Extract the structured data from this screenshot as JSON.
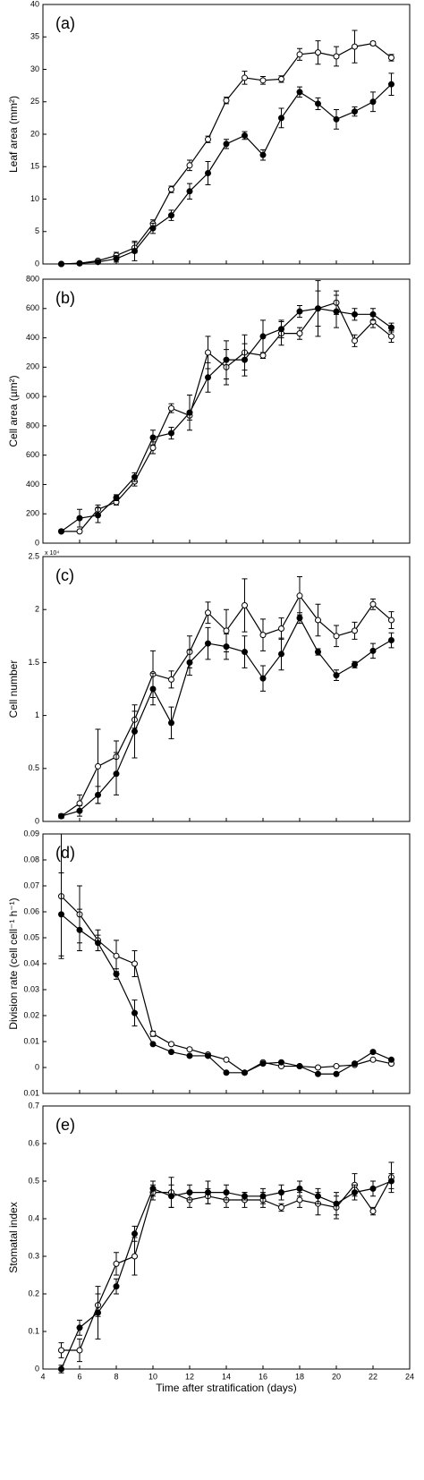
{
  "chart_data": [
    {
      "type": "line",
      "title": "(a)",
      "y_label": "Leaf area (mm²)",
      "x": [
        5,
        6,
        7,
        8,
        9,
        10,
        11,
        12,
        13,
        14,
        15,
        16,
        17,
        18,
        19,
        20,
        21,
        22,
        23
      ],
      "xlim": [
        4,
        24
      ],
      "xticks": [
        4,
        6,
        8,
        10,
        12,
        14,
        16,
        18,
        20,
        22,
        24
      ],
      "xtick_labels": false,
      "ylim": [
        0,
        40
      ],
      "yticks": [
        0,
        5,
        10,
        15,
        20,
        25,
        30,
        35,
        40
      ],
      "series": [
        {
          "marker": "open",
          "color": "#000",
          "values": [
            0,
            0.1,
            0.5,
            1.3,
            2.5,
            6.2,
            11.5,
            15.2,
            19.2,
            25.2,
            28.7,
            28.3,
            28.5,
            32.3,
            32.6,
            32.0,
            33.5,
            34.0,
            31.8
          ],
          "errors": [
            0.1,
            0.1,
            0.2,
            0.5,
            0.8,
            0.6,
            0.5,
            0.8,
            0.5,
            0.5,
            1,
            0.6,
            0.5,
            0.9,
            1.8,
            1.5,
            2.5,
            0.3,
            0.5
          ]
        },
        {
          "marker": "filled",
          "color": "#000",
          "values": [
            0,
            0.1,
            0.3,
            0.8,
            2.0,
            5.5,
            7.5,
            11.2,
            14,
            18.5,
            19.8,
            16.8,
            22.5,
            26.5,
            24.7,
            22.3,
            23.5,
            25,
            27.7
          ],
          "errors": [
            0.1,
            0.1,
            0.2,
            0.5,
            1.5,
            0.8,
            0.8,
            1.2,
            1.8,
            0.7,
            0.6,
            0.8,
            1.5,
            0.8,
            0.9,
            1.5,
            0.7,
            1.5,
            1.7
          ]
        }
      ]
    },
    {
      "type": "line",
      "title": "(b)",
      "y_label": "Cell area (µm²)",
      "x": [
        5,
        6,
        7,
        8,
        9,
        10,
        11,
        12,
        13,
        14,
        15,
        16,
        17,
        18,
        19,
        20,
        21,
        22,
        23
      ],
      "xlim": [
        4,
        24
      ],
      "xticks": [
        4,
        6,
        8,
        10,
        12,
        14,
        16,
        18,
        20,
        22,
        24
      ],
      "xtick_labels": false,
      "ylim": [
        0,
        1800
      ],
      "yticks": [
        0,
        200,
        400,
        600,
        800,
        {
          "value": 1000,
          "label": "000"
        },
        {
          "value": 1200,
          "label": "200"
        },
        {
          "value": 1400,
          "label": "400"
        },
        {
          "value": 1600,
          "label": "600"
        },
        {
          "value": 1800,
          "label": "800"
        }
      ],
      "series": [
        {
          "marker": "open",
          "color": "#000",
          "values": [
            80,
            80,
            230,
            280,
            420,
            650,
            920,
            870,
            1300,
            1200,
            1300,
            1280,
            1430,
            1430,
            1600,
            1640,
            1380,
            1510,
            1410
          ],
          "errors": [
            10,
            10,
            30,
            20,
            30,
            40,
            30,
            30,
            110,
            120,
            120,
            20,
            80,
            40,
            190,
            80,
            40,
            40,
            40
          ]
        },
        {
          "marker": "filled",
          "color": "#000",
          "values": [
            80,
            170,
            190,
            310,
            450,
            720,
            750,
            890,
            1130,
            1250,
            1250,
            1410,
            1460,
            1580,
            1600,
            1580,
            1560,
            1560,
            1470
          ],
          "errors": [
            10,
            60,
            50,
            20,
            30,
            50,
            40,
            120,
            100,
            130,
            110,
            110,
            60,
            40,
            120,
            110,
            40,
            40,
            30
          ]
        }
      ]
    },
    {
      "type": "line",
      "title": "(c)",
      "y_label": "Cell number",
      "y_multiplier": "x 10⁴",
      "x": [
        5,
        6,
        7,
        8,
        9,
        10,
        11,
        12,
        13,
        14,
        15,
        16,
        17,
        18,
        19,
        20,
        21,
        22,
        23
      ],
      "xlim": [
        4,
        24
      ],
      "xticks": [
        4,
        6,
        8,
        10,
        12,
        14,
        16,
        18,
        20,
        22,
        24
      ],
      "xtick_labels": false,
      "ylim": [
        0,
        25000
      ],
      "yticks": [
        {
          "value": 0,
          "label": "0"
        },
        {
          "value": 5000,
          "label": "0.5"
        },
        {
          "value": 10000,
          "label": "1"
        },
        {
          "value": 15000,
          "label": "1.5"
        },
        {
          "value": 20000,
          "label": "2"
        },
        {
          "value": 25000,
          "label": "2.5"
        }
      ],
      "series": [
        {
          "marker": "open",
          "color": "#000",
          "values": [
            500,
            1700,
            5200,
            6100,
            9600,
            13900,
            13400,
            16000,
            19700,
            18000,
            20400,
            17600,
            18200,
            21300,
            19000,
            17500,
            18000,
            20500,
            19000
          ],
          "errors": [
            200,
            800,
            3500,
            1500,
            800,
            2200,
            800,
            1500,
            1000,
            2000,
            2500,
            1500,
            1000,
            1800,
            1500,
            1000,
            800,
            500,
            800
          ]
        },
        {
          "marker": "filled",
          "color": "#000",
          "values": [
            500,
            1000,
            2500,
            4500,
            8500,
            12500,
            9300,
            15000,
            16800,
            16500,
            16000,
            13500,
            15800,
            19200,
            16000,
            13800,
            14800,
            16100,
            17100
          ],
          "errors": [
            200,
            500,
            800,
            2000,
            2500,
            1500,
            1500,
            1200,
            1500,
            1200,
            1500,
            1200,
            1500,
            500,
            300,
            500,
            300,
            700,
            700
          ]
        }
      ]
    },
    {
      "type": "line",
      "title": "(d)",
      "y_label": "Division rate (cell cell⁻¹ h⁻¹)",
      "x": [
        5,
        6,
        7,
        8,
        9,
        10,
        11,
        12,
        13,
        14,
        15,
        16,
        17,
        18,
        19,
        20,
        21,
        22,
        23
      ],
      "xlim": [
        4,
        24
      ],
      "xticks": [
        4,
        6,
        8,
        10,
        12,
        14,
        16,
        18,
        20,
        22,
        24
      ],
      "xtick_labels": false,
      "ylim": [
        -0.01,
        0.09
      ],
      "yticks": [
        {
          "value": -0.01,
          "label": "0.01"
        },
        0,
        0.01,
        0.02,
        0.03,
        0.04,
        0.05,
        0.06,
        0.07,
        0.08,
        0.09
      ],
      "series": [
        {
          "marker": "open",
          "color": "#000",
          "values": [
            0.066,
            0.059,
            0.049,
            0.043,
            0.04,
            0.013,
            0.009,
            0.007,
            0.005,
            0.003,
            -0.002,
            0.002,
            0.0005,
            0.0005,
            0,
            0.0005,
            0.001,
            0.003,
            0.0015
          ],
          "errors": [
            0.024,
            0.011,
            0.004,
            0.006,
            0.005,
            0.001,
            0.0005,
            0.0005,
            0.0005,
            0.0005,
            0.0005,
            0.0005,
            0.0005,
            0.0005,
            0.0005,
            0.0005,
            0.0005,
            0.0005,
            0.0005
          ]
        },
        {
          "marker": "filled",
          "color": "#000",
          "values": [
            0.059,
            0.053,
            0.048,
            0.036,
            0.021,
            0.009,
            0.006,
            0.0045,
            0.0045,
            -0.002,
            -0.002,
            0.0015,
            0.002,
            0.0005,
            -0.0025,
            -0.0025,
            0.0015,
            0.006,
            0.003
          ],
          "errors": [
            0.016,
            0.008,
            0.003,
            0.002,
            0.005,
            0.0005,
            0.0005,
            0.0005,
            0.0005,
            0.0005,
            0.0005,
            0.0005,
            0.0005,
            0.0005,
            0.0005,
            0.0005,
            0.0005,
            0.0005,
            0.0005
          ]
        }
      ]
    },
    {
      "type": "line",
      "title": "(e)",
      "y_label": "Stomatal index",
      "x_label": "Time after stratification (days)",
      "x": [
        5,
        6,
        7,
        8,
        9,
        10,
        11,
        12,
        13,
        14,
        15,
        16,
        17,
        18,
        19,
        20,
        21,
        22,
        23
      ],
      "xlim": [
        4,
        24
      ],
      "xticks": [
        4,
        6,
        8,
        10,
        12,
        14,
        16,
        18,
        20,
        22,
        24
      ],
      "xtick_labels": true,
      "ylim": [
        0,
        0.7
      ],
      "yticks": [
        0,
        0.1,
        0.2,
        0.3,
        0.4,
        0.5,
        0.6,
        0.7
      ],
      "series": [
        {
          "marker": "open",
          "color": "#000",
          "values": [
            0.05,
            0.05,
            0.17,
            0.28,
            0.3,
            0.47,
            0.47,
            0.45,
            0.46,
            0.45,
            0.45,
            0.45,
            0.43,
            0.45,
            0.44,
            0.43,
            0.49,
            0.42,
            0.51
          ],
          "errors": [
            0.02,
            0.03,
            0.03,
            0.03,
            0.05,
            0.02,
            0.04,
            0.02,
            0.02,
            0.02,
            0.02,
            0.02,
            0.01,
            0.02,
            0.03,
            0.03,
            0.03,
            0.01,
            0.04
          ]
        },
        {
          "marker": "filled",
          "color": "#000",
          "values": [
            0.0,
            0.11,
            0.15,
            0.22,
            0.36,
            0.48,
            0.46,
            0.47,
            0.47,
            0.47,
            0.46,
            0.46,
            0.47,
            0.48,
            0.46,
            0.44,
            0.47,
            0.48,
            0.5
          ],
          "errors": [
            0.01,
            0.02,
            0.07,
            0.02,
            0.02,
            0.02,
            0.03,
            0.02,
            0.03,
            0.02,
            0.01,
            0.02,
            0.02,
            0.02,
            0.02,
            0.03,
            0.02,
            0.02,
            0.02
          ]
        }
      ]
    }
  ]
}
